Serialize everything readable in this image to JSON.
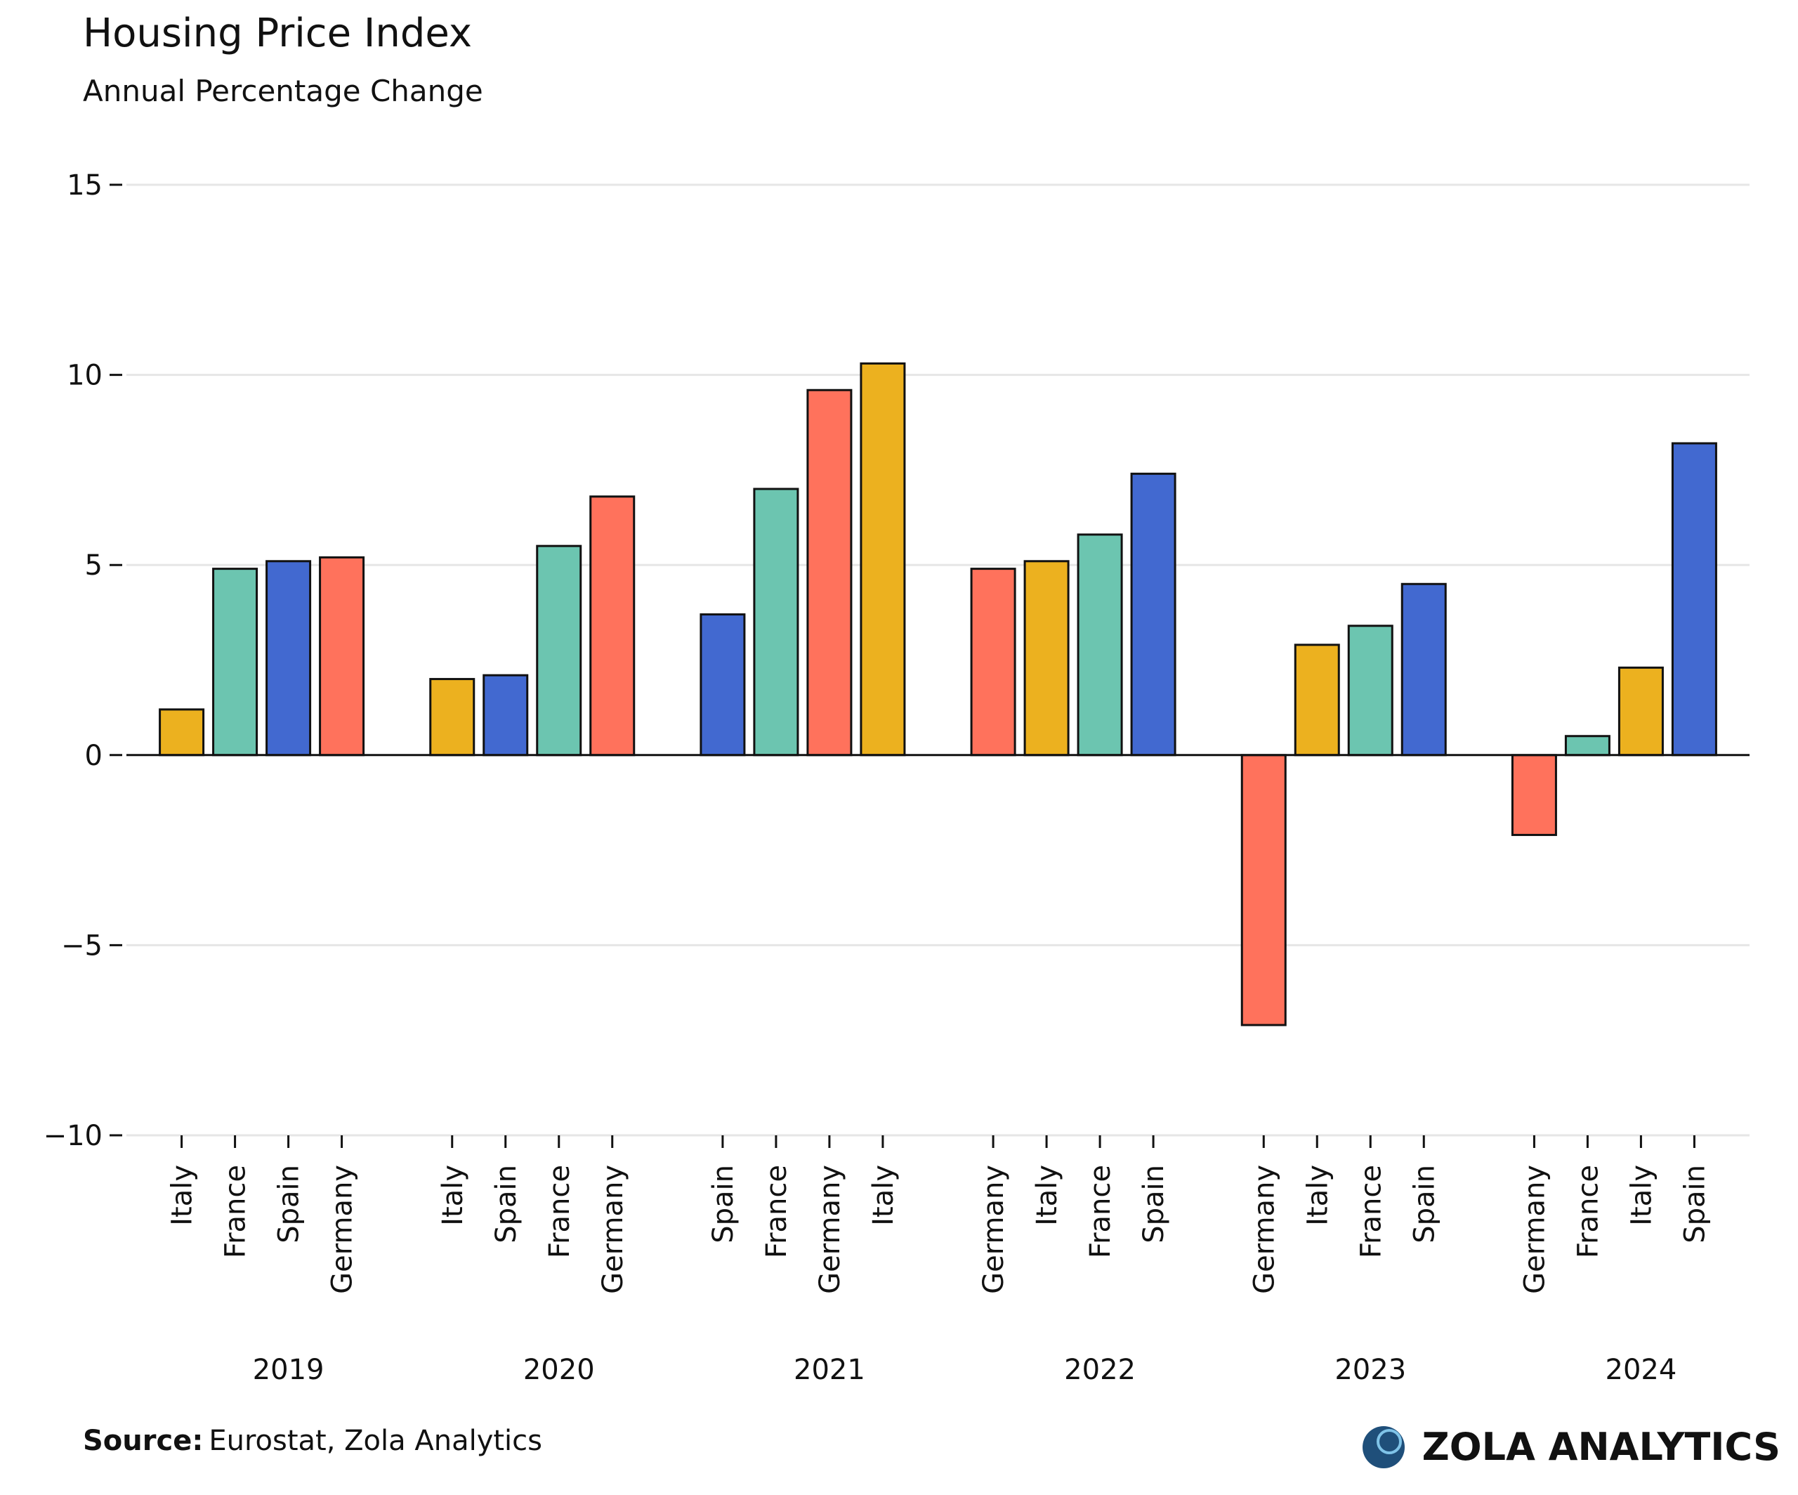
{
  "chart_data": {
    "type": "grouped-bar",
    "title": "Housing Price Index",
    "subtitle": "Annual Percentage Change",
    "groups": [
      {
        "name": "2019",
        "categories": [
          "Italy",
          "France",
          "Spain",
          "Germany"
        ],
        "values": [
          1.2,
          4.9,
          5.1,
          5.2
        ],
        "colors": [
          "#ecb11f",
          "#6cc5b0",
          "#4269d0",
          "#ff725c"
        ]
      },
      {
        "name": "2020",
        "categories": [
          "Italy",
          "Spain",
          "France",
          "Germany"
        ],
        "values": [
          2.0,
          2.1,
          5.5,
          6.8
        ],
        "colors": [
          "#ecb11f",
          "#4269d0",
          "#6cc5b0",
          "#ff725c"
        ]
      },
      {
        "name": "2021",
        "categories": [
          "Spain",
          "France",
          "Germany",
          "Italy"
        ],
        "values": [
          3.7,
          7.0,
          9.6,
          10.3
        ],
        "colors": [
          "#4269d0",
          "#6cc5b0",
          "#ff725c",
          "#ecb11f"
        ]
      },
      {
        "name": "2022",
        "categories": [
          "Germany",
          "Italy",
          "France",
          "Spain"
        ],
        "values": [
          4.9,
          5.1,
          5.8,
          7.4
        ],
        "colors": [
          "#ff725c",
          "#ecb11f",
          "#6cc5b0",
          "#4269d0"
        ]
      },
      {
        "name": "2023",
        "categories": [
          "Germany",
          "Italy",
          "France",
          "Spain"
        ],
        "values": [
          -7.1,
          2.9,
          3.4,
          4.5
        ],
        "colors": [
          "#ff725c",
          "#ecb11f",
          "#6cc5b0",
          "#4269d0"
        ]
      },
      {
        "name": "2024",
        "categories": [
          "Germany",
          "France",
          "Italy",
          "Spain"
        ],
        "values": [
          -2.1,
          0.5,
          2.3,
          8.2
        ],
        "colors": [
          "#ff725c",
          "#6cc5b0",
          "#ecb11f",
          "#4269d0"
        ]
      }
    ],
    "ylim": [
      -10,
      15
    ],
    "yticks": [
      {
        "value": -10,
        "label": "−10"
      },
      {
        "value": -5,
        "label": "−5"
      },
      0,
      5,
      10,
      15
    ],
    "grid": true,
    "source_label": "Source:",
    "source": "Eurostat, Zola Analytics",
    "brand": "ZOLA ANALYTICS"
  }
}
